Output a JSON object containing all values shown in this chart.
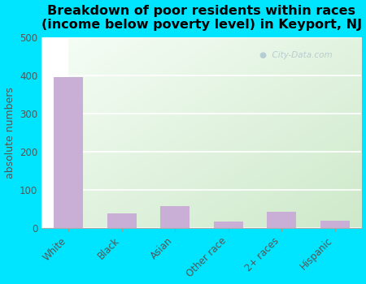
{
  "title": "Breakdown of poor residents within races\n(income below poverty level) in Keyport, NJ",
  "categories": [
    "White",
    "Black",
    "Asian",
    "Other race",
    "2+ races",
    "Hispanic"
  ],
  "values": [
    397,
    40,
    58,
    18,
    43,
    19
  ],
  "bar_color": "#c9aed6",
  "ylabel": "absolute numbers",
  "ylim": [
    0,
    500
  ],
  "yticks": [
    0,
    100,
    200,
    300,
    400,
    500
  ],
  "background_color": "#00e5ff",
  "grad_color_topleft": "#cce8c8",
  "grad_color_bottomright": "#f5fdf5",
  "title_fontsize": 11.5,
  "axis_label_fontsize": 9,
  "tick_fontsize": 8.5,
  "watermark": "City-Data.com",
  "watermark_icon": "●"
}
